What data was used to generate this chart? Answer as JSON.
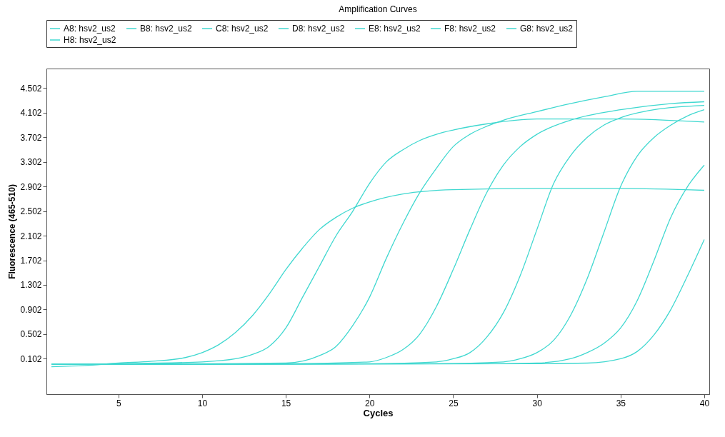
{
  "chart_data": {
    "type": "line",
    "title": "Amplification Curves",
    "xlabel": "Cycles",
    "ylabel": "Fluorescence (465-510)",
    "xlim": [
      0.7,
      40.3
    ],
    "xticks": [
      5,
      10,
      15,
      20,
      25,
      30,
      35,
      40
    ],
    "ylim": [
      -0.475,
      4.82
    ],
    "yticks": [
      0.102,
      0.502,
      0.902,
      1.302,
      1.702,
      2.102,
      2.502,
      2.902,
      3.302,
      3.702,
      4.102,
      4.502
    ],
    "grid": false,
    "legend": "top",
    "marker": "none",
    "line_style": "solid",
    "series": [
      {
        "name": "A8: hsv2_us2",
        "color": "#40d8d0",
        "x": [
          1,
          3,
          5,
          7,
          9,
          10,
          11,
          12,
          13,
          14,
          15,
          16,
          17,
          18,
          19,
          20,
          22,
          25,
          30,
          35,
          40
        ],
        "values": [
          -0.03,
          -0.01,
          0.03,
          0.06,
          0.12,
          0.2,
          0.33,
          0.53,
          0.8,
          1.15,
          1.55,
          1.9,
          2.2,
          2.4,
          2.55,
          2.65,
          2.78,
          2.85,
          2.87,
          2.87,
          2.84
        ]
      },
      {
        "name": "B8: hsv2_us2",
        "color": "#40d8d0",
        "x": [
          1,
          5,
          10,
          12,
          13,
          14,
          15,
          16,
          17,
          18,
          19,
          20,
          21,
          22,
          23,
          24,
          25,
          27,
          30,
          35,
          40
        ],
        "values": [
          0.01,
          0.02,
          0.05,
          0.1,
          0.17,
          0.3,
          0.6,
          1.1,
          1.6,
          2.1,
          2.5,
          2.95,
          3.3,
          3.5,
          3.65,
          3.75,
          3.82,
          3.92,
          4.0,
          4.0,
          3.95
        ]
      },
      {
        "name": "C8: hsv2_us2",
        "color": "#40d8d0",
        "x": [
          1,
          10,
          15,
          17,
          18,
          19,
          20,
          21,
          22,
          23,
          24,
          25,
          26,
          27,
          28,
          30,
          32,
          34,
          36,
          40
        ],
        "values": [
          0.01,
          0.02,
          0.03,
          0.15,
          0.3,
          0.64,
          1.1,
          1.73,
          2.3,
          2.8,
          3.2,
          3.55,
          3.75,
          3.88,
          3.98,
          4.12,
          4.25,
          4.36,
          4.45,
          4.45
        ]
      },
      {
        "name": "D8: hsv2_us2",
        "color": "#40d8d0",
        "x": [
          1,
          15,
          20,
          21,
          22,
          23,
          24,
          25,
          26,
          27,
          28,
          29,
          30,
          32,
          35,
          38,
          40
        ],
        "values": [
          0.01,
          0.02,
          0.05,
          0.12,
          0.25,
          0.5,
          0.95,
          1.55,
          2.2,
          2.8,
          3.25,
          3.55,
          3.75,
          3.98,
          4.15,
          4.25,
          4.28
        ]
      },
      {
        "name": "E8: hsv2_us2",
        "color": "#40d8d0",
        "x": [
          1,
          20,
          24,
          25,
          26,
          27,
          28,
          29,
          30,
          31,
          32,
          33,
          34,
          35,
          37,
          40
        ],
        "values": [
          0.01,
          0.02,
          0.05,
          0.1,
          0.2,
          0.45,
          0.85,
          1.45,
          2.2,
          2.95,
          3.4,
          3.7,
          3.9,
          4.02,
          4.15,
          4.22
        ]
      },
      {
        "name": "F8: hsv2_us2",
        "color": "#40d8d0",
        "x": [
          1,
          24,
          28,
          29,
          30,
          31,
          32,
          33,
          34,
          35,
          36,
          37,
          38,
          39,
          40
        ],
        "values": [
          0.01,
          0.02,
          0.05,
          0.1,
          0.2,
          0.4,
          0.8,
          1.4,
          2.15,
          2.9,
          3.4,
          3.7,
          3.9,
          4.05,
          4.15
        ]
      },
      {
        "name": "G8: hsv2_us2",
        "color": "#40d8d0",
        "x": [
          1,
          28,
          30,
          32,
          33,
          34,
          35,
          36,
          37,
          38,
          39,
          40
        ],
        "values": [
          0.01,
          0.02,
          0.03,
          0.1,
          0.2,
          0.35,
          0.6,
          1.05,
          1.7,
          2.4,
          2.9,
          3.25
        ]
      },
      {
        "name": "H8: hsv2_us2",
        "color": "#40d8d0",
        "x": [
          1,
          30,
          33,
          35,
          36,
          37,
          38,
          39,
          40
        ],
        "values": [
          0.01,
          0.02,
          0.03,
          0.1,
          0.22,
          0.49,
          0.9,
          1.45,
          2.04
        ]
      }
    ]
  }
}
